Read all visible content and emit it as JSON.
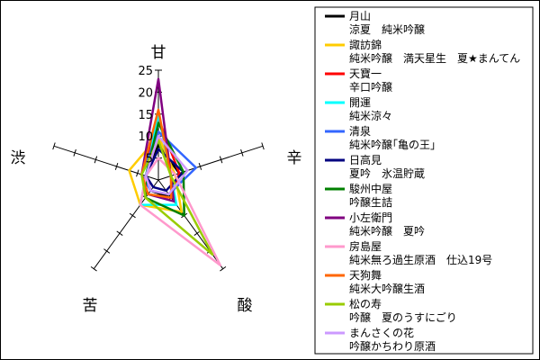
{
  "chart_data": {
    "type": "radar",
    "axes": [
      "甘",
      "辛",
      "酸",
      "苦",
      "渋"
    ],
    "rlim": [
      0,
      25
    ],
    "ticks": [
      5,
      10,
      15,
      20,
      25
    ],
    "tick_labels": [
      "5",
      "10",
      "15",
      "20",
      "25"
    ],
    "grid": false,
    "legend_position": "right",
    "series": [
      {
        "name": "月山",
        "subtitle": "涼夏　純米吟醸",
        "color": "#000000",
        "values": [
          8,
          5,
          5,
          3,
          3
        ]
      },
      {
        "name": "諏訪錦",
        "subtitle": "純米吟醸　満天星生　夏★まんてん",
        "color": "#FFCC00",
        "values": [
          10,
          4,
          9,
          7,
          7
        ]
      },
      {
        "name": "天寶一",
        "subtitle": "辛口吟醸",
        "color": "#FF0000",
        "values": [
          14,
          5,
          5,
          4,
          4
        ]
      },
      {
        "name": "開運",
        "subtitle": "純米涼々",
        "color": "#00FFFF",
        "values": [
          15,
          3,
          7,
          7,
          3
        ]
      },
      {
        "name": "清泉",
        "subtitle": "純米吟醸｢亀の王｣",
        "color": "#3366FF",
        "values": [
          11,
          9,
          4,
          3,
          4
        ]
      },
      {
        "name": "日高見",
        "subtitle": "夏吟　氷温貯蔵",
        "color": "#000080",
        "values": [
          7,
          6,
          3,
          2,
          3
        ]
      },
      {
        "name": "駿州中屋",
        "subtitle": "吟醸生詰",
        "color": "#008000",
        "values": [
          13,
          6,
          10,
          5,
          3
        ]
      },
      {
        "name": "小左衛門",
        "subtitle": "純米吟醸　夏吟",
        "color": "#800080",
        "values": [
          23,
          3,
          6,
          4,
          4
        ]
      },
      {
        "name": "房島屋",
        "subtitle": "純米無ろ過生原酒　仕込19号",
        "color": "#FF99CC",
        "values": [
          5,
          4,
          24,
          7,
          3
        ]
      },
      {
        "name": "天狗舞",
        "subtitle": "純米大吟醸生酒",
        "color": "#FF6600",
        "values": [
          16,
          3,
          5,
          4,
          4
        ]
      },
      {
        "name": "松の寿",
        "subtitle": "吟醸　夏のうすにごり",
        "color": "#99CC00",
        "values": [
          9,
          3,
          21,
          5,
          4
        ]
      },
      {
        "name": "まんさくの花",
        "subtitle": "吟醸かちわり原酒",
        "color": "#CC99FF",
        "values": [
          10,
          7,
          4,
          3,
          3
        ]
      }
    ]
  }
}
